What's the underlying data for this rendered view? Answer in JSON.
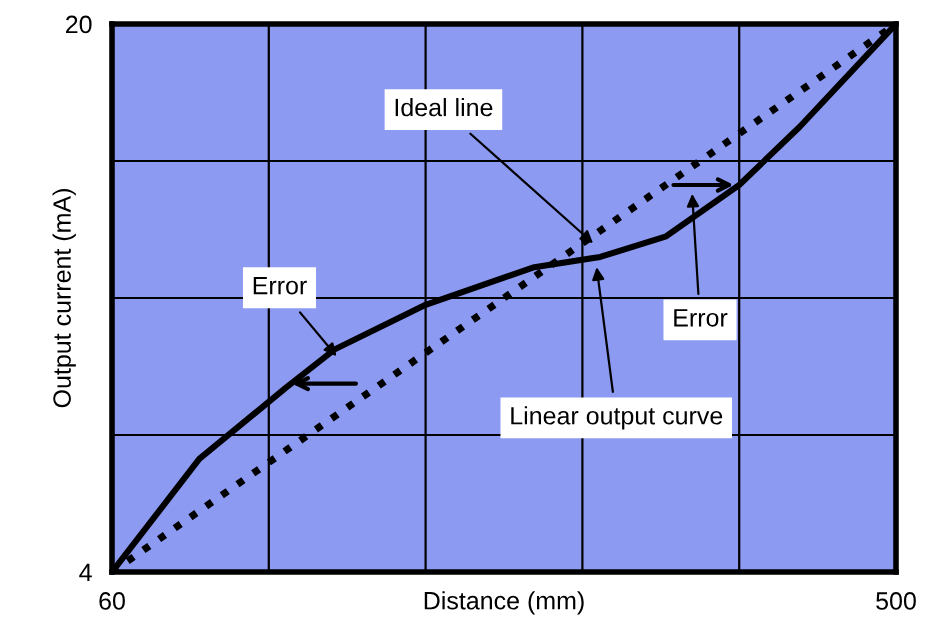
{
  "chart_data": {
    "type": "line",
    "xlabel": "Distance (mm)",
    "ylabel": "Output current (mA)",
    "xlim": [
      60,
      500
    ],
    "ylim": [
      4,
      20
    ],
    "xticks": [
      60,
      {
        "value": 148,
        "label": null
      },
      {
        "value": 236,
        "label": null
      },
      {
        "value": 324,
        "label": null
      },
      {
        "value": 412,
        "label": null
      },
      500
    ],
    "yticks": [
      4,
      {
        "value": 8,
        "label": null
      },
      {
        "value": 12,
        "label": null
      },
      {
        "value": 16,
        "label": null
      },
      20
    ],
    "grid": true,
    "legend": false,
    "marker": "none",
    "series": [
      {
        "color": "#000000",
        "line_style": "solid",
        "x": [
          60,
          109,
          158,
          185,
          236,
          297,
          334,
          371,
          412,
          446,
          500
        ],
        "values": [
          4,
          7.3,
          9.4,
          10.5,
          11.8,
          12.9,
          13.2,
          13.8,
          15.3,
          17.0,
          20
        ]
      },
      {
        "color": "#000000",
        "line_style": "dotted",
        "x": [
          60,
          500
        ],
        "values": [
          4,
          20
        ]
      }
    ],
    "annotations": [
      {
        "text": "Ideal line",
        "x": 330,
        "y": 13.6
      },
      {
        "text": "Error",
        "x": 186,
        "y": 10.3
      },
      "Error",
      {
        "text": "Linear output curve",
        "x": 332,
        "y": 12.9
      }
    ]
  }
}
